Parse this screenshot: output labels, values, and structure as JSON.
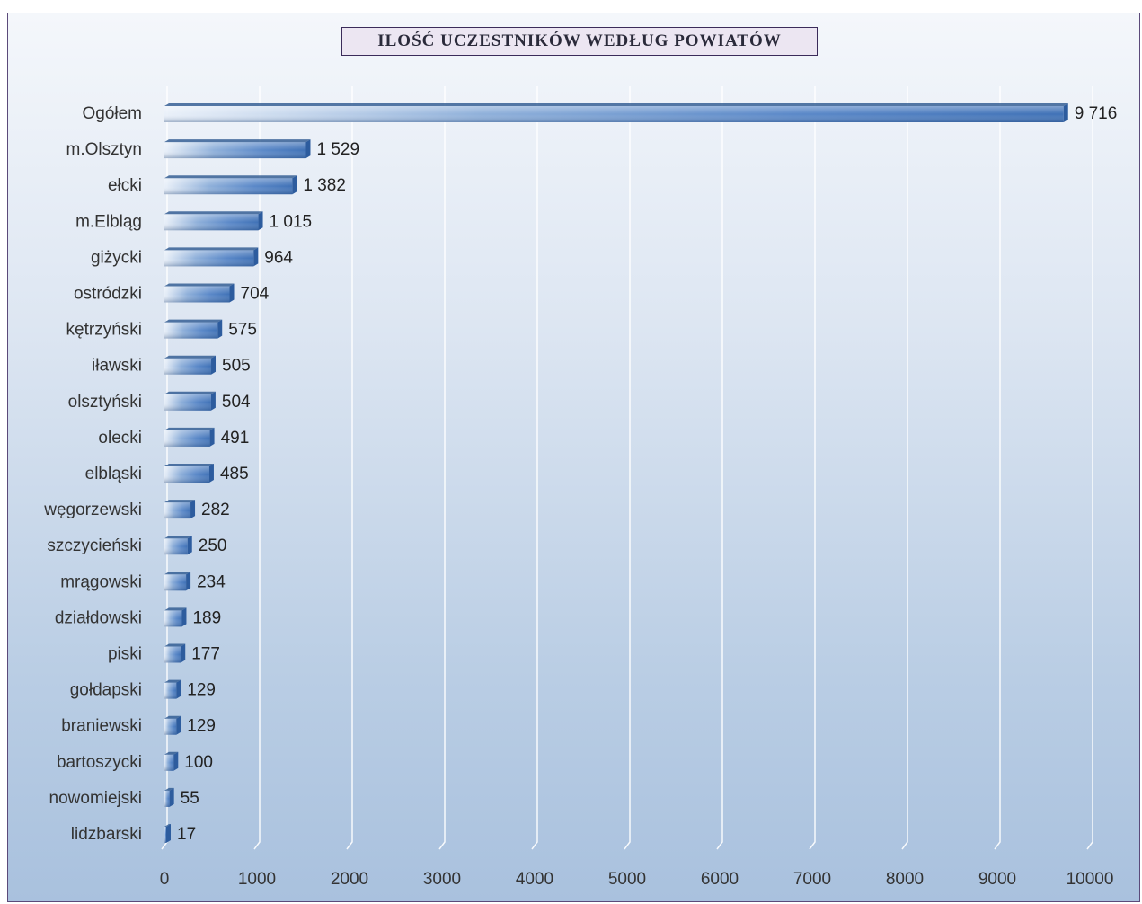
{
  "chart_data": {
    "type": "bar",
    "orientation": "horizontal",
    "title": "ILOŚĆ UCZESTNIKÓW WEDŁUG POWIATÓW",
    "categories": [
      "Ogółem",
      "m.Olsztyn",
      "ełcki",
      "m.Elbląg",
      "giżycki",
      "ostródzki",
      "kętrzyński",
      "iławski",
      "olsztyński",
      "olecki",
      "elbląski",
      "węgorzewski",
      "szczycieński",
      "mrągowski",
      "działdowski",
      "piski",
      "gołdapski",
      "braniewski",
      "bartoszycki",
      "nowomiejski",
      "lidzbarski"
    ],
    "values": [
      9716,
      1529,
      1382,
      1015,
      964,
      704,
      575,
      505,
      504,
      491,
      485,
      282,
      250,
      234,
      189,
      177,
      129,
      129,
      100,
      55,
      17
    ],
    "value_labels": [
      "9 716",
      "1 529",
      "1 382",
      "1 015",
      "964",
      "704",
      "575",
      "505",
      "504",
      "491",
      "485",
      "282",
      "250",
      "234",
      "189",
      "177",
      "129",
      "129",
      "100",
      "55",
      "17"
    ],
    "xlim": [
      0,
      10000
    ],
    "x_ticks": [
      0,
      1000,
      2000,
      3000,
      4000,
      5000,
      6000,
      7000,
      8000,
      9000,
      10000
    ],
    "grid": true,
    "legend": "none",
    "colors": {
      "bar": "#4a7cc0",
      "bar_dark": "#2d5c9e",
      "bar_light": "#e8eff8",
      "grid": "#ffffff"
    }
  }
}
